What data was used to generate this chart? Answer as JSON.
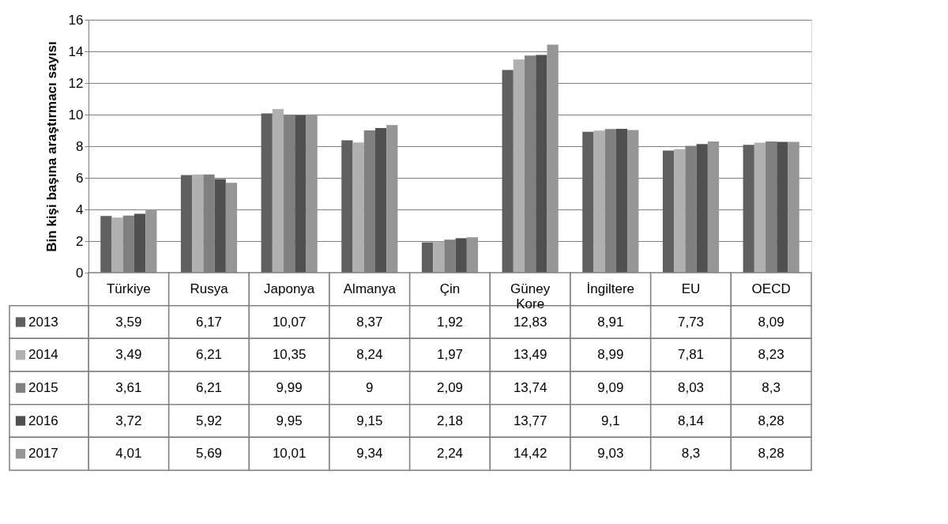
{
  "chart_data": {
    "type": "bar",
    "ylabel": "Bin kişi başına araştırmacı sayısı",
    "categories": [
      "Türkiye",
      "Rusya",
      "Japonya",
      "Almanya",
      "Çin",
      "Güney Kore",
      "İngiltere",
      "EU",
      "OECD"
    ],
    "series": [
      {
        "name": "2013",
        "color": "#606060",
        "values": [
          3.59,
          6.17,
          10.07,
          8.37,
          1.92,
          12.83,
          8.91,
          7.73,
          8.09
        ],
        "value_labels": [
          "3,59",
          "6,17",
          "10,07",
          "8,37",
          "1,92",
          "12,83",
          "8,91",
          "7,73",
          "8,09"
        ]
      },
      {
        "name": "2014",
        "color": "#b0b0b0",
        "values": [
          3.49,
          6.21,
          10.35,
          8.24,
          1.97,
          13.49,
          8.99,
          7.81,
          8.23
        ],
        "value_labels": [
          "3,49",
          "6,21",
          "10,35",
          "8,24",
          "1,97",
          "13,49",
          "8,99",
          "7,81",
          "8,23"
        ]
      },
      {
        "name": "2015",
        "color": "#808080",
        "values": [
          3.61,
          6.21,
          9.99,
          9,
          2.09,
          13.74,
          9.09,
          8.03,
          8.3
        ],
        "value_labels": [
          "3,61",
          "6,21",
          "9,99",
          "9",
          "2,09",
          "13,74",
          "9,09",
          "8,03",
          "8,3"
        ]
      },
      {
        "name": "2016",
        "color": "#505050",
        "values": [
          3.72,
          5.92,
          9.95,
          9.15,
          2.18,
          13.77,
          9.1,
          8.14,
          8.28
        ],
        "value_labels": [
          "3,72",
          "5,92",
          "9,95",
          "9,15",
          "2,18",
          "13,77",
          "9,1",
          "8,14",
          "8,28"
        ]
      },
      {
        "name": "2017",
        "color": "#969696",
        "values": [
          4.01,
          5.69,
          10.01,
          9.34,
          2.24,
          14.42,
          9.03,
          8.3,
          8.28
        ],
        "value_labels": [
          "4,01",
          "5,69",
          "10,01",
          "9,34",
          "2,24",
          "14,42",
          "9,03",
          "8,3",
          "8,28"
        ]
      }
    ],
    "ylim": [
      0,
      16
    ],
    "yticks": [
      0,
      2,
      4,
      6,
      8,
      10,
      12,
      14,
      16
    ],
    "grid": "y",
    "legend": "bottom"
  }
}
